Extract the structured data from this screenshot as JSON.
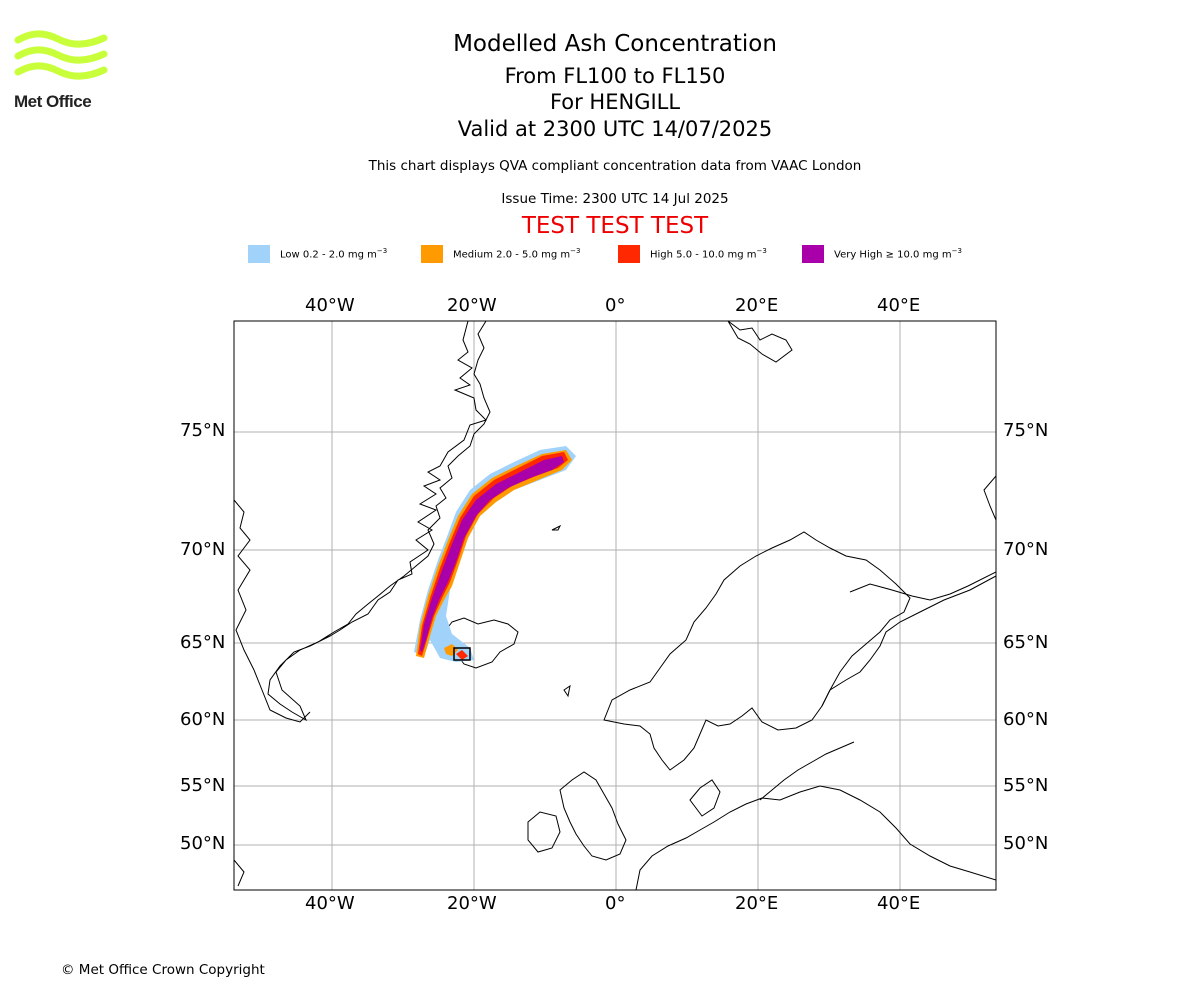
{
  "logo": {
    "text": "Met Office",
    "wave_color": "#c8ff3a"
  },
  "header": {
    "title": "Modelled Ash Concentration",
    "level_range": "From FL100 to FL150",
    "location": "For HENGILL",
    "valid_time": "Valid at 2300 UTC 14/07/2025",
    "description": "This chart displays QVA compliant concentration data from VAAC London",
    "issue_time": "Issue Time: 2300 UTC 14 Jul 2025",
    "test_banner": "TEST TEST TEST"
  },
  "legend": [
    {
      "label": "Low 0.2 - 2.0 mg m",
      "exp": "−3",
      "color": "#a0d2fa"
    },
    {
      "label": "Medium 2.0 - 5.0 mg m",
      "exp": "−3",
      "color": "#ff9b00"
    },
    {
      "label": "High 5.0 - 10.0 mg m",
      "exp": "−3",
      "color": "#ff2800"
    },
    {
      "label": "Very High  ≥  10.0 mg m",
      "exp": "−3",
      "color": "#aa00aa"
    }
  ],
  "map": {
    "longitude_labels": [
      "40°W",
      "20°W",
      "0°",
      "20°E",
      "40°E"
    ],
    "latitude_labels": [
      "75°N",
      "70°N",
      "65°N",
      "60°N",
      "55°N",
      "50°N"
    ],
    "grid": true,
    "projection": "polar stereographic",
    "source_volcano": "HENGILL"
  },
  "footer": {
    "copyright": "© Met Office Crown Copyright"
  }
}
